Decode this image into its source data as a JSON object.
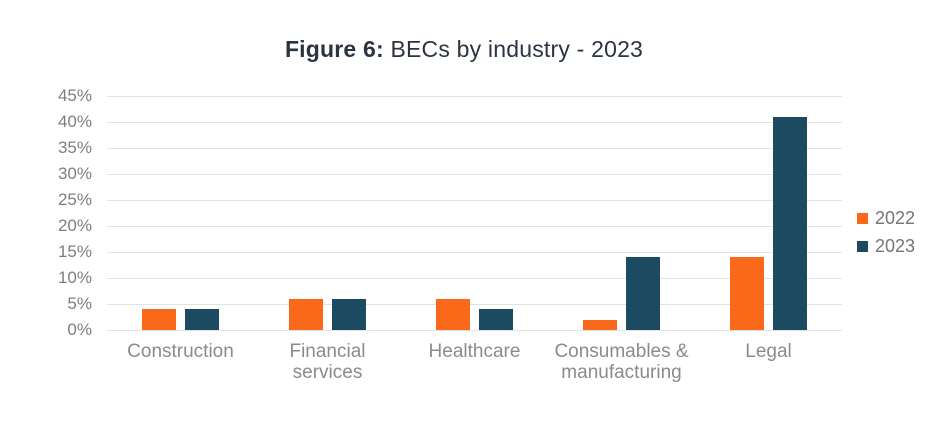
{
  "figure": {
    "title_prefix": "Figure 6:",
    "title_rest": " BECs by industry - 2023"
  },
  "chart_data": {
    "type": "bar",
    "title": "Figure 6: BECs by industry - 2023",
    "categories": [
      "Construction",
      "Financial\nservices",
      "Healthcare",
      "Consumables &\nmanufacturing",
      "Legal"
    ],
    "series": [
      {
        "name": "2022",
        "color": "#fa691a",
        "values": [
          4,
          6,
          6,
          2,
          14
        ]
      },
      {
        "name": "2023",
        "color": "#1c4b61",
        "values": [
          4,
          6,
          4,
          14,
          41
        ]
      }
    ],
    "xlabel": "",
    "ylabel": "",
    "ylim": [
      0,
      45
    ],
    "ytick_step": 5,
    "ytick_suffix": "%",
    "grid": true,
    "legend_position": "right",
    "gridline_color": "#e3e3e3"
  }
}
